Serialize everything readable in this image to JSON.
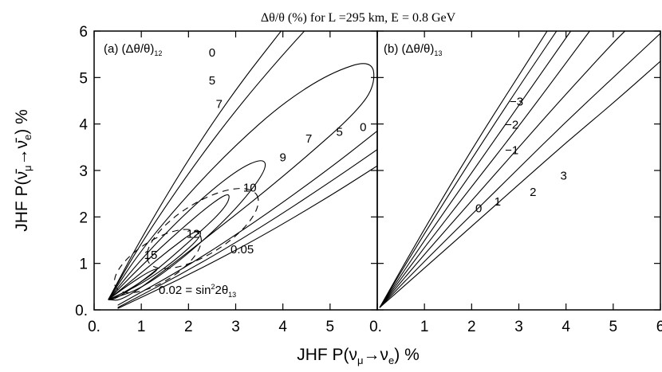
{
  "figure": {
    "title": "Δθ/θ (%) for L =295 km, E = 0.8 GeV",
    "xlabel": "JHF P(ν",
    "xlabel_sub": "μ",
    "xlabel_arrow": "→ν",
    "xlabel_sub2": "e",
    "xlabel_tail": ")  %",
    "ylabel": "JHF P(ν̄",
    "ylabel_sub": "μ",
    "ylabel_arrow": "→ν̄",
    "ylabel_sub2": "e",
    "ylabel_tail": ")  %"
  },
  "chart_data": [
    {
      "type": "line",
      "panel_label": "(a)",
      "panel_quantity": "(Δθ/θ)",
      "panel_quantity_sub": "12",
      "xlim": [
        0,
        6
      ],
      "ylim": [
        0,
        6
      ],
      "x_ticks": [
        "0.",
        "1",
        "2",
        "3",
        "4",
        "5",
        "6"
      ],
      "y_ticks": [
        "0.",
        "1",
        "2",
        "3",
        "4",
        "5",
        "6"
      ],
      "sin2_label": "0.02 = sin",
      "sin2_sup": "2",
      "sin2_tail": "2θ",
      "sin2_sub": "13",
      "ellipse_label_005": "0.05",
      "contour_labels": [
        "0",
        "5",
        "7",
        "9",
        "10",
        "12",
        "15",
        "7",
        "5",
        "0"
      ],
      "series": [
        {
          "label": "0",
          "points": [
            [
              0.3,
              0.22
            ],
            [
              1.0,
              1.55
            ],
            [
              2.0,
              3.25
            ],
            [
              3.0,
              4.75
            ],
            [
              4.0,
              6.05
            ]
          ]
        },
        {
          "label": "5",
          "points": [
            [
              0.3,
              0.22
            ],
            [
              1.0,
              1.45
            ],
            [
              2.0,
              2.95
            ],
            [
              3.0,
              4.3
            ],
            [
              4.0,
              5.5
            ],
            [
              5.0,
              6.6
            ]
          ]
        },
        {
          "label": "7",
          "points": [
            [
              0.3,
              0.22
            ],
            [
              1.0,
              1.3
            ],
            [
              2.0,
              2.5
            ],
            [
              3.0,
              3.55
            ],
            [
              4.0,
              4.45
            ],
            [
              5.0,
              5.1
            ],
            [
              5.9,
              5.4
            ],
            [
              5.95,
              4.8
            ],
            [
              5.5,
              4.2
            ],
            [
              4.5,
              3.3
            ],
            [
              3.5,
              2.45
            ],
            [
              2.5,
              1.65
            ],
            [
              1.5,
              0.85
            ],
            [
              0.6,
              0.2
            ],
            [
              0.3,
              0.22
            ]
          ]
        },
        {
          "label": "9",
          "points": [
            [
              0.3,
              0.22
            ],
            [
              1.0,
              1.1
            ],
            [
              2.0,
              2.15
            ],
            [
              3.0,
              3.0
            ],
            [
              3.6,
              3.28
            ],
            [
              3.65,
              3.0
            ],
            [
              3.0,
              2.15
            ],
            [
              2.0,
              1.2
            ],
            [
              1.0,
              0.45
            ],
            [
              0.3,
              0.22
            ]
          ]
        },
        {
          "label": "10",
          "points": [
            [
              0.3,
              0.22
            ],
            [
              1.0,
              0.95
            ],
            [
              1.8,
              1.7
            ],
            [
              2.5,
              2.3
            ],
            [
              2.9,
              2.55
            ],
            [
              2.8,
              2.2
            ],
            [
              2.0,
              1.45
            ],
            [
              1.2,
              0.75
            ],
            [
              0.5,
              0.25
            ],
            [
              0.3,
              0.22
            ]
          ]
        },
        {
          "label": "12",
          "points": [
            [
              0.3,
              0.22
            ],
            [
              1.0,
              0.8
            ],
            [
              1.6,
              1.3
            ],
            [
              2.2,
              1.75
            ],
            [
              2.3,
              1.6
            ],
            [
              1.7,
              1.05
            ],
            [
              1.0,
              0.55
            ],
            [
              0.3,
              0.22
            ]
          ]
        },
        {
          "label": "15",
          "points": [
            [
              0.3,
              0.22
            ],
            [
              0.7,
              0.52
            ],
            [
              1.2,
              0.85
            ],
            [
              1.4,
              0.9
            ],
            [
              1.0,
              0.6
            ],
            [
              0.5,
              0.3
            ],
            [
              0.3,
              0.22
            ]
          ]
        },
        {
          "label": "7b",
          "points": [
            [
              0.5,
              0.1
            ],
            [
              2.0,
              0.95
            ],
            [
              3.5,
              1.95
            ],
            [
              5.0,
              3.05
            ],
            [
              6.0,
              3.85
            ]
          ]
        },
        {
          "label": "5b",
          "points": [
            [
              0.5,
              0.05
            ],
            [
              2.0,
              0.85
            ],
            [
              3.5,
              1.75
            ],
            [
              5.0,
              2.75
            ],
            [
              6.0,
              3.45
            ]
          ]
        },
        {
          "label": "0b",
          "points": [
            [
              0.5,
              0.03
            ],
            [
              2.0,
              0.75
            ],
            [
              3.5,
              1.55
            ],
            [
              5.0,
              2.45
            ],
            [
              6.0,
              3.1
            ]
          ]
        }
      ],
      "dashed_ellipses": [
        {
          "label": "0.02",
          "cx": 1.35,
          "cy": 1.05,
          "rx": 1.05,
          "ry": 0.45,
          "angle_deg": -32
        },
        {
          "label": "0.05",
          "cx": 2.3,
          "cy": 1.75,
          "rx": 1.35,
          "ry": 0.55,
          "angle_deg": -32
        }
      ]
    },
    {
      "type": "line",
      "panel_label": "(b)",
      "panel_quantity": "(Δθ/θ)",
      "panel_quantity_sub": "13",
      "xlim": [
        0,
        6
      ],
      "ylim": [
        0,
        6
      ],
      "x_ticks": [
        "0.",
        "1",
        "2",
        "3",
        "4",
        "5",
        "6"
      ],
      "contour_labels": [
        "−3",
        "−2",
        "−1",
        "0",
        "1",
        "2",
        "3"
      ],
      "series": [
        {
          "label": "-3",
          "points": [
            [
              0.05,
              0.05
            ],
            [
              1.0,
              1.75
            ],
            [
              2.0,
              3.45
            ],
            [
              3.0,
              5.05
            ],
            [
              3.6,
              6.0
            ]
          ]
        },
        {
          "label": "-2",
          "points": [
            [
              0.05,
              0.05
            ],
            [
              1.0,
              1.65
            ],
            [
              2.0,
              3.25
            ],
            [
              3.0,
              4.8
            ],
            [
              3.8,
              6.0
            ]
          ]
        },
        {
          "label": "-1",
          "points": [
            [
              0.05,
              0.05
            ],
            [
              1.0,
              1.5
            ],
            [
              2.0,
              2.95
            ],
            [
              3.0,
              4.4
            ],
            [
              4.1,
              6.0
            ]
          ]
        },
        {
          "label": "0",
          "points": [
            [
              0.05,
              0.05
            ],
            [
              1.0,
              1.35
            ],
            [
              2.0,
              2.65
            ],
            [
              3.0,
              3.95
            ],
            [
              4.5,
              6.0
            ]
          ]
        },
        {
          "label": "1",
          "points": [
            [
              0.05,
              0.05
            ],
            [
              1.0,
              1.2
            ],
            [
              2.0,
              2.35
            ],
            [
              3.0,
              3.5
            ],
            [
              4.0,
              4.65
            ],
            [
              5.0,
              5.75
            ],
            [
              5.25,
              6.0
            ]
          ]
        },
        {
          "label": "2",
          "points": [
            [
              0.05,
              0.05
            ],
            [
              1.0,
              1.05
            ],
            [
              2.0,
              2.05
            ],
            [
              3.0,
              3.05
            ],
            [
              4.0,
              4.05
            ],
            [
              5.0,
              5.0
            ],
            [
              6.0,
              5.95
            ]
          ]
        },
        {
          "label": "3",
          "points": [
            [
              0.05,
              0.05
            ],
            [
              1.0,
              0.9
            ],
            [
              2.0,
              1.8
            ],
            [
              3.0,
              2.7
            ],
            [
              4.0,
              3.6
            ],
            [
              5.0,
              4.45
            ],
            [
              6.0,
              5.35
            ]
          ]
        }
      ]
    }
  ]
}
